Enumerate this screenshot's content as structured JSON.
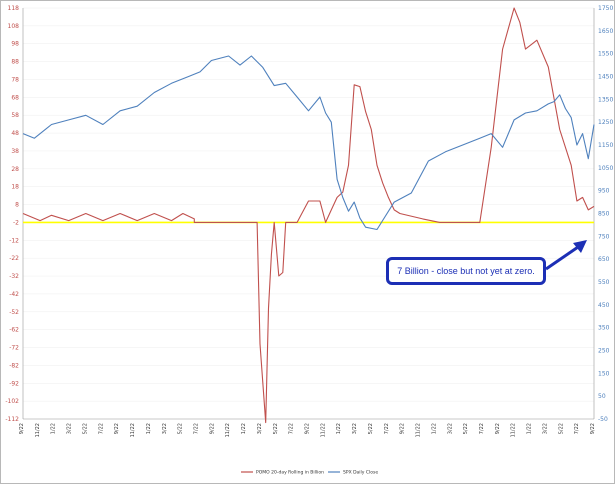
{
  "chart_data": {
    "type": "line",
    "title": "",
    "x_ticks": [
      "9/22",
      "11/22",
      "1/22",
      "3/22",
      "5/22",
      "7/22",
      "9/22",
      "11/22",
      "1/22",
      "3/22",
      "5/22",
      "7/22",
      "9/22",
      "11/22",
      "1/22",
      "3/22",
      "5/22",
      "7/22",
      "9/22",
      "11/22",
      "1/22",
      "3/22",
      "5/22",
      "7/22",
      "9/22",
      "11/22",
      "1/22",
      "3/22",
      "5/22",
      "7/22",
      "9/22",
      "11/22",
      "1/22",
      "3/22",
      "5/22",
      "7/22",
      "9/22"
    ],
    "left_axis": {
      "ticks": [
        118,
        108,
        98,
        88,
        78,
        68,
        58,
        48,
        38,
        28,
        18,
        8,
        -2,
        -12,
        -22,
        -32,
        -42,
        -52,
        -62,
        -72,
        -82,
        -92,
        -102,
        -112
      ],
      "range": [
        -112,
        118
      ],
      "color": "#c0504d"
    },
    "right_axis": {
      "ticks": [
        1750,
        1650,
        1550,
        1450,
        1350,
        1250,
        1150,
        1050,
        950,
        850,
        750,
        650,
        550,
        450,
        350,
        250,
        150,
        50,
        -50
      ],
      "range": [
        -50,
        1750
      ],
      "color": "#4f81bd"
    },
    "series": [
      {
        "name": "POMO 20-day Rolling in Billion",
        "axis": "left",
        "color": "#c0504d",
        "x": [
          0,
          0.03,
          0.05,
          0.08,
          0.11,
          0.14,
          0.17,
          0.2,
          0.23,
          0.26,
          0.28,
          0.3,
          0.3,
          0.35,
          0.4,
          0.41,
          0.415,
          0.425,
          0.43,
          0.435,
          0.44,
          0.448,
          0.455,
          0.46,
          0.465,
          0.475,
          0.48,
          0.5,
          0.52,
          0.53,
          0.54,
          0.55,
          0.56,
          0.57,
          0.58,
          0.59,
          0.6,
          0.61,
          0.62,
          0.63,
          0.64,
          0.65,
          0.66,
          0.7,
          0.73,
          0.76,
          0.8,
          0.82,
          0.84,
          0.86,
          0.87,
          0.88,
          0.9,
          0.92,
          0.94,
          0.96,
          0.97,
          0.98,
          0.99,
          1.0
        ],
        "y": [
          3,
          -1,
          2,
          -1,
          3,
          -1,
          3,
          -1,
          3,
          -1,
          3,
          0,
          -2,
          -2,
          -2,
          -2,
          -70,
          -114,
          -50,
          -20,
          -2,
          -32,
          -30,
          -2,
          -2,
          -2,
          -2,
          10,
          10,
          -2,
          5,
          12,
          15,
          30,
          75,
          74,
          60,
          50,
          30,
          20,
          12,
          5,
          3,
          0,
          -2,
          -2,
          -2,
          40,
          95,
          118,
          110,
          95,
          100,
          85,
          50,
          30,
          10,
          12,
          5,
          7
        ]
      },
      {
        "name": "SPX Daily Close",
        "axis": "right",
        "color": "#4f81bd",
        "x": [
          0,
          0.02,
          0.05,
          0.08,
          0.11,
          0.14,
          0.17,
          0.2,
          0.23,
          0.26,
          0.29,
          0.31,
          0.33,
          0.36,
          0.38,
          0.4,
          0.42,
          0.44,
          0.46,
          0.48,
          0.5,
          0.52,
          0.53,
          0.54,
          0.55,
          0.56,
          0.57,
          0.58,
          0.59,
          0.6,
          0.62,
          0.65,
          0.68,
          0.71,
          0.74,
          0.77,
          0.8,
          0.82,
          0.84,
          0.86,
          0.88,
          0.9,
          0.92,
          0.93,
          0.94,
          0.95,
          0.96,
          0.97,
          0.98,
          0.99,
          1.0
        ],
        "y": [
          1200,
          1180,
          1240,
          1260,
          1280,
          1240,
          1300,
          1320,
          1380,
          1420,
          1450,
          1470,
          1520,
          1540,
          1500,
          1540,
          1490,
          1410,
          1420,
          1360,
          1300,
          1360,
          1290,
          1250,
          1000,
          920,
          860,
          900,
          830,
          790,
          780,
          900,
          940,
          1080,
          1120,
          1150,
          1180,
          1200,
          1140,
          1260,
          1290,
          1300,
          1330,
          1340,
          1370,
          1310,
          1270,
          1150,
          1200,
          1090,
          1240
        ]
      }
    ],
    "legend": {
      "position": "bottom",
      "items": [
        "POMO 20-day Rolling in Billion",
        "SPX Daily Close"
      ]
    },
    "zero_line": {
      "value": -2,
      "color": "#ffff00"
    },
    "annotation": {
      "text": "7 Billion - close but not yet at zero.",
      "color": "#1c2fb5"
    }
  }
}
